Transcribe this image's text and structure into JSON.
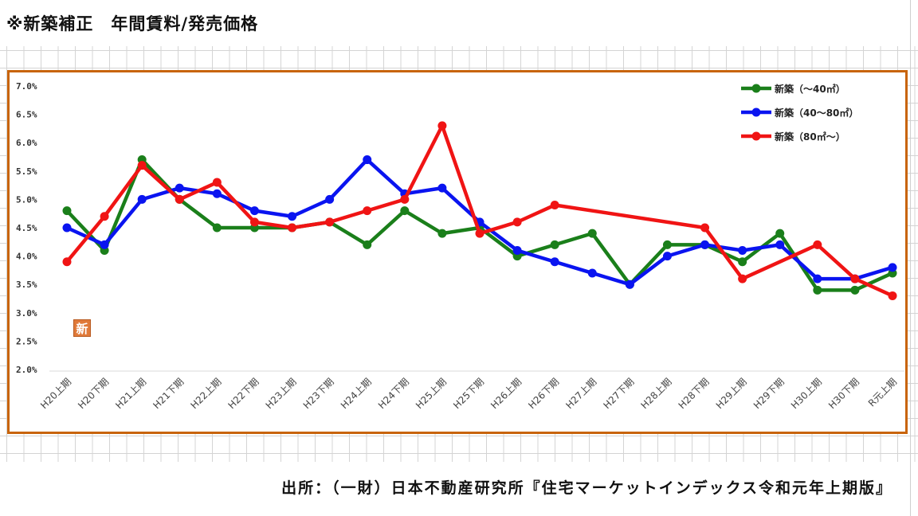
{
  "header": {
    "title": "※新築補正　年間賃料/発売価格"
  },
  "source": {
    "text": "出所：（一財）日本不動産研究所『住宅マーケットインデックス令和元年上期版』"
  },
  "badge": {
    "text": "新"
  },
  "colors": {
    "frame": "#c8640a",
    "series": [
      "#1a7f1a",
      "#0a14f0",
      "#f01414"
    ]
  },
  "chart_data": {
    "type": "line",
    "title": "",
    "xlabel": "",
    "ylabel": "",
    "ylim": [
      0.02,
      0.07
    ],
    "yticks": [
      "7.0%",
      "6.5%",
      "6.0%",
      "5.5%",
      "5.0%",
      "4.5%",
      "4.0%",
      "3.5%",
      "3.0%",
      "2.5%",
      "2.0%"
    ],
    "ytick_values": [
      0.07,
      0.065,
      0.06,
      0.055,
      0.05,
      0.045,
      0.04,
      0.035,
      0.03,
      0.025,
      0.02
    ],
    "legend_position": "top-right",
    "categories": [
      "H20上期",
      "H20下期",
      "H21上期",
      "H21下期",
      "H22上期",
      "H22下期",
      "H23上期",
      "H23下期",
      "H24上期",
      "H24下期",
      "H25上期",
      "H25下期",
      "H26上期",
      "H26下期",
      "H27上期",
      "H27下期",
      "H28上期",
      "H28下期",
      "H29上期",
      "H29下期",
      "H30上期",
      "H30下期",
      "R元上期"
    ],
    "series": [
      {
        "name": "新築（～40㎡）",
        "color": "#1a7f1a",
        "values": [
          0.048,
          0.041,
          0.057,
          0.05,
          0.045,
          0.045,
          0.045,
          0.046,
          0.042,
          0.048,
          0.044,
          0.045,
          0.04,
          0.042,
          0.044,
          0.035,
          0.042,
          0.042,
          0.039,
          0.044,
          0.034,
          0.034,
          0.037
        ]
      },
      {
        "name": "新築（40～80㎡）",
        "color": "#0a14f0",
        "values": [
          0.045,
          0.042,
          0.05,
          0.052,
          0.051,
          0.048,
          0.047,
          0.05,
          0.057,
          0.051,
          0.052,
          0.046,
          0.041,
          0.039,
          0.037,
          0.035,
          0.04,
          0.042,
          0.041,
          0.042,
          0.036,
          0.036,
          0.038
        ]
      },
      {
        "name": "新築（80㎡～）",
        "color": "#f01414",
        "values": [
          0.039,
          0.047,
          0.056,
          0.05,
          0.053,
          0.046,
          0.045,
          0.046,
          0.048,
          0.05,
          0.063,
          0.044,
          0.046,
          0.049,
          null,
          null,
          null,
          0.045,
          0.036,
          null,
          0.042,
          0.036,
          0.033
        ]
      }
    ]
  }
}
